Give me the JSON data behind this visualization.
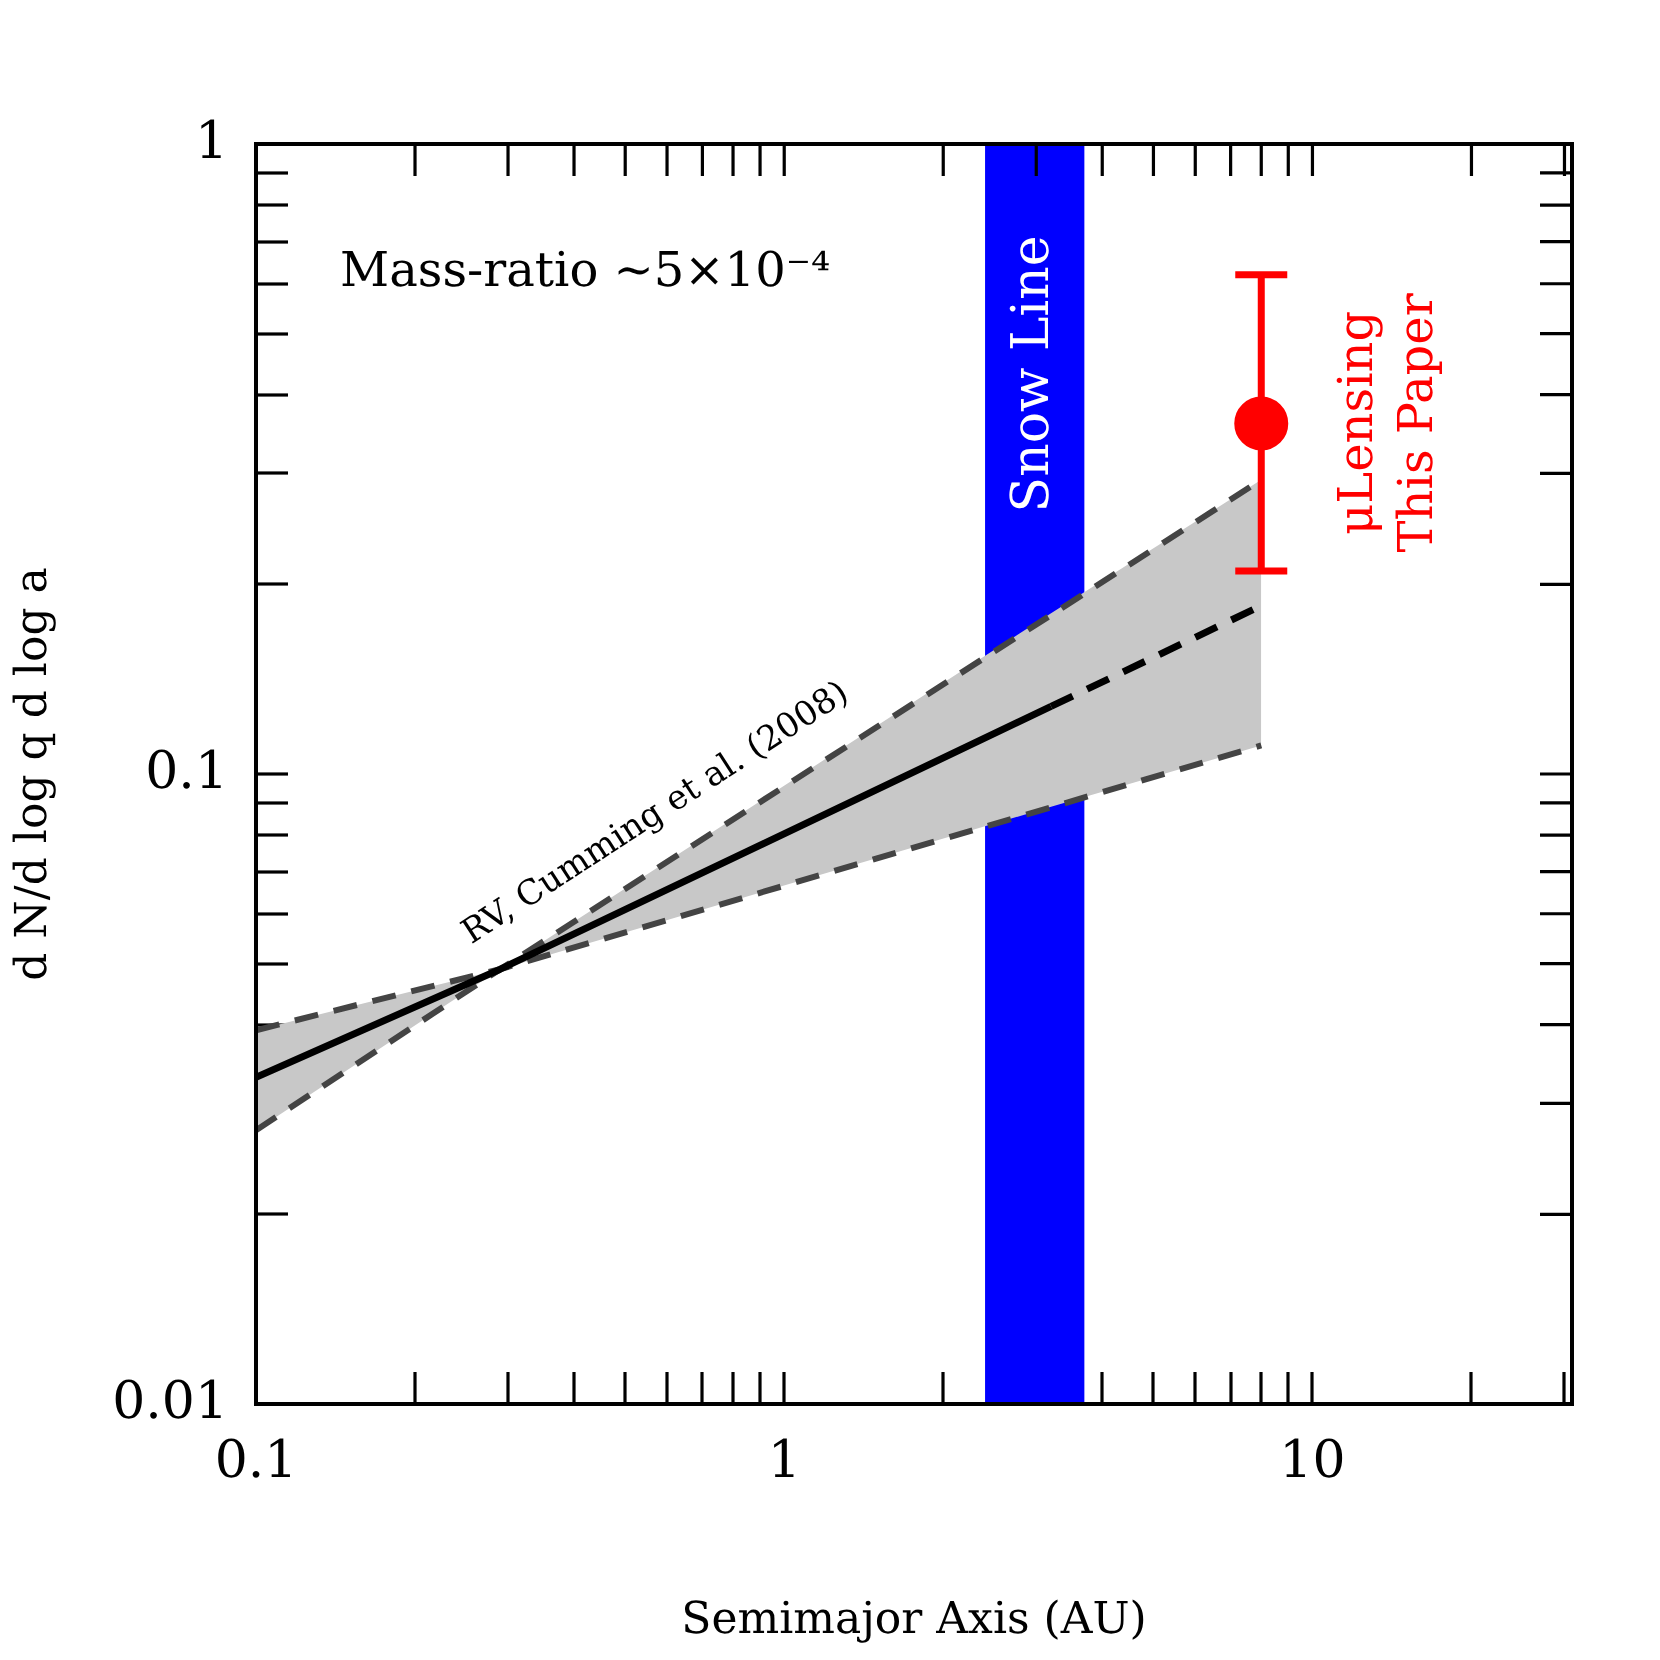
{
  "chart_data": {
    "type": "line",
    "xlabel": "Semimajor Axis (AU)",
    "ylabel": "d N/d log q d log a",
    "log": "xy",
    "grid": false,
    "legend": "right",
    "xlim": [
      0.1,
      31
    ],
    "ylim": [
      0.01,
      1
    ],
    "xticks": [
      0.1,
      {
        "value": 0.2,
        "label": null
      },
      {
        "value": 0.3,
        "label": null
      },
      {
        "value": 0.4,
        "label": null
      },
      {
        "value": 0.5,
        "label": null
      },
      {
        "value": 0.6,
        "label": null
      },
      {
        "value": 0.7,
        "label": null
      },
      {
        "value": 0.8,
        "label": null
      },
      {
        "value": 0.9,
        "label": null
      },
      1,
      {
        "value": 2,
        "label": null
      },
      {
        "value": 3,
        "label": null
      },
      {
        "value": 4,
        "label": null
      },
      {
        "value": 5,
        "label": null
      },
      {
        "value": 6,
        "label": null
      },
      {
        "value": 7,
        "label": null
      },
      {
        "value": 8,
        "label": null
      },
      {
        "value": 9,
        "label": null
      },
      10,
      {
        "value": 20,
        "label": null
      },
      {
        "value": 30,
        "label": null
      }
    ],
    "yticks": [
      0.01,
      {
        "value": 0.02,
        "label": null
      },
      {
        "value": 0.03,
        "label": null
      },
      {
        "value": 0.04,
        "label": null
      },
      {
        "value": 0.05,
        "label": null
      },
      {
        "value": 0.06,
        "label": null
      },
      {
        "value": 0.07,
        "label": null
      },
      {
        "value": 0.08,
        "label": null
      },
      {
        "value": 0.09,
        "label": null
      },
      0.1,
      {
        "value": 0.2,
        "label": null
      },
      {
        "value": 0.3,
        "label": null
      },
      {
        "value": 0.4,
        "label": null
      },
      {
        "value": 0.5,
        "label": null
      },
      {
        "value": 0.6,
        "label": null
      },
      {
        "value": 0.7,
        "label": null
      },
      {
        "value": 0.8,
        "label": null
      },
      {
        "value": 0.9,
        "label": null
      },
      1
    ],
    "bands": [
      {
        "axis": "x",
        "from": 2.4,
        "to": 3.7,
        "label": "Snow Line",
        "color": "#0000ff"
      }
    ],
    "series": [
      {
        "color": "#000000",
        "line_style": "solid",
        "x": [
          0.1,
          0.29,
          3.2,
          8
        ],
        "values": [
          0.033,
          0.049,
          0.128,
          null
        ],
        "lower": [
          0.0272,
          0.049,
          0.0887,
          0.111
        ],
        "upper": [
          0.0392,
          0.049,
          0.18,
          0.293
        ]
      },
      {
        "color": "#000000",
        "line_style": "dashed",
        "x": [
          3.2,
          8
        ],
        "values": [
          0.128,
          0.185
        ]
      },
      {
        "color": "#444444",
        "line_style": "dashed",
        "x": [
          0.1,
          0.29,
          8
        ],
        "values": [
          0.0392,
          0.049,
          0.111
        ]
      },
      {
        "color": "#444444",
        "line_style": "dashed",
        "x": [
          0.1,
          0.29,
          8
        ],
        "values": [
          0.0272,
          0.049,
          0.293
        ]
      },
      {
        "type": "scatter",
        "name": "μLensing\nThis Paper",
        "color": "#ff0000",
        "marker": "circle",
        "x": [
          8
        ],
        "values": [
          0.36
        ],
        "errors": [
          [
            0.21,
            0.62
          ]
        ]
      }
    ],
    "annotations": [
      "Mass-ratio ~5×10⁻⁴",
      "RV, Cumming et al. (2008)"
    ]
  }
}
